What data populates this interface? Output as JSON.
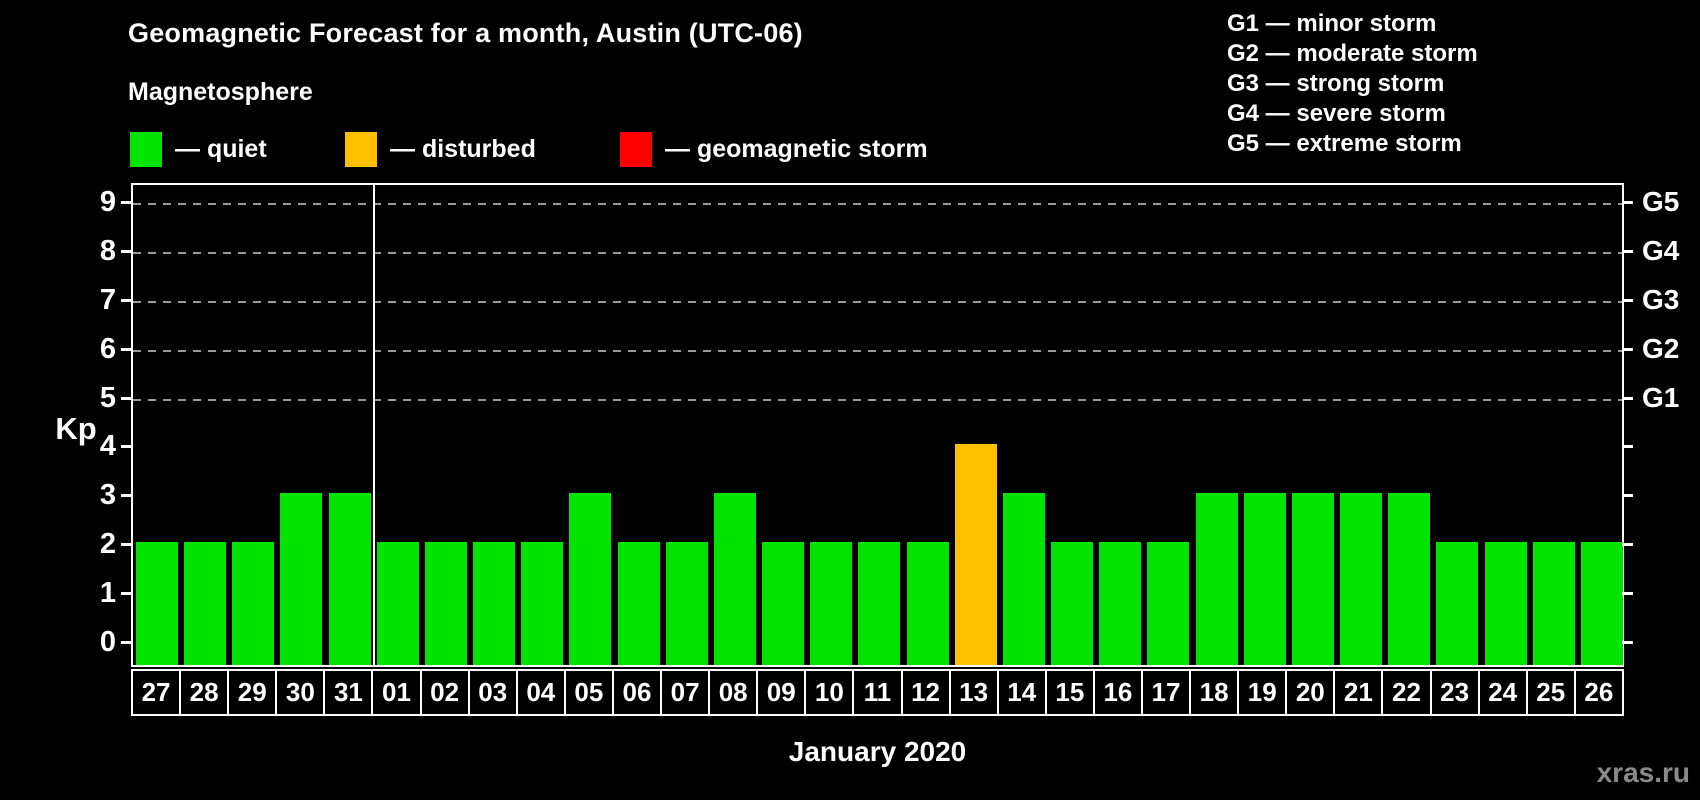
{
  "header": {
    "title": "Geomagnetic Forecast for a month, Austin (UTC-06)",
    "subtitle": "Magnetosphere"
  },
  "status_legend": [
    {
      "key": "quiet",
      "label": "— quiet",
      "color": "#00e400"
    },
    {
      "key": "disturbed",
      "label": "— disturbed",
      "color": "#ffc000"
    },
    {
      "key": "storm",
      "label": "— geomagnetic storm",
      "color": "#ff0000"
    }
  ],
  "g_scale_legend": [
    "G1 — minor storm",
    "G2 — moderate storm",
    "G3 — strong storm",
    "G4 — severe storm",
    "G5 — extreme storm"
  ],
  "watermark": "xras.ru",
  "chart_data": {
    "type": "bar",
    "title": "Geomagnetic Forecast for a month, Austin (UTC-06)",
    "xlabel": "January 2020",
    "ylabel": "Kp",
    "ylim": [
      0,
      9
    ],
    "yticks": [
      0,
      1,
      2,
      3,
      4,
      5,
      6,
      7,
      8,
      9
    ],
    "gridlines_at": [
      5,
      6,
      7,
      8,
      9
    ],
    "grid": "dashed horizontal lines at storm levels only",
    "legend_position": "top",
    "right_axis": [
      {
        "kp": 5,
        "label": "G1"
      },
      {
        "kp": 6,
        "label": "G2"
      },
      {
        "kp": 7,
        "label": "G3"
      },
      {
        "kp": 8,
        "label": "G4"
      },
      {
        "kp": 9,
        "label": "G5"
      }
    ],
    "categories": [
      "27",
      "28",
      "29",
      "30",
      "31",
      "01",
      "02",
      "03",
      "04",
      "05",
      "06",
      "07",
      "08",
      "09",
      "10",
      "11",
      "12",
      "13",
      "14",
      "15",
      "16",
      "17",
      "18",
      "19",
      "20",
      "21",
      "22",
      "23",
      "24",
      "25",
      "26"
    ],
    "values": [
      2,
      2,
      2,
      3,
      3,
      2,
      2,
      2,
      2,
      3,
      2,
      2,
      3,
      2,
      2,
      2,
      2,
      4,
      3,
      2,
      2,
      2,
      3,
      3,
      3,
      3,
      3,
      2,
      2,
      2,
      2
    ],
    "statuses": [
      "quiet",
      "quiet",
      "quiet",
      "quiet",
      "quiet",
      "quiet",
      "quiet",
      "quiet",
      "quiet",
      "quiet",
      "quiet",
      "quiet",
      "quiet",
      "quiet",
      "quiet",
      "quiet",
      "quiet",
      "disturbed",
      "quiet",
      "quiet",
      "quiet",
      "quiet",
      "quiet",
      "quiet",
      "quiet",
      "quiet",
      "quiet",
      "quiet",
      "quiet",
      "quiet",
      "quiet"
    ],
    "month_separator_after": "31",
    "colors": {
      "quiet": "#00e400",
      "disturbed": "#ffc000",
      "storm": "#ff0000"
    }
  }
}
